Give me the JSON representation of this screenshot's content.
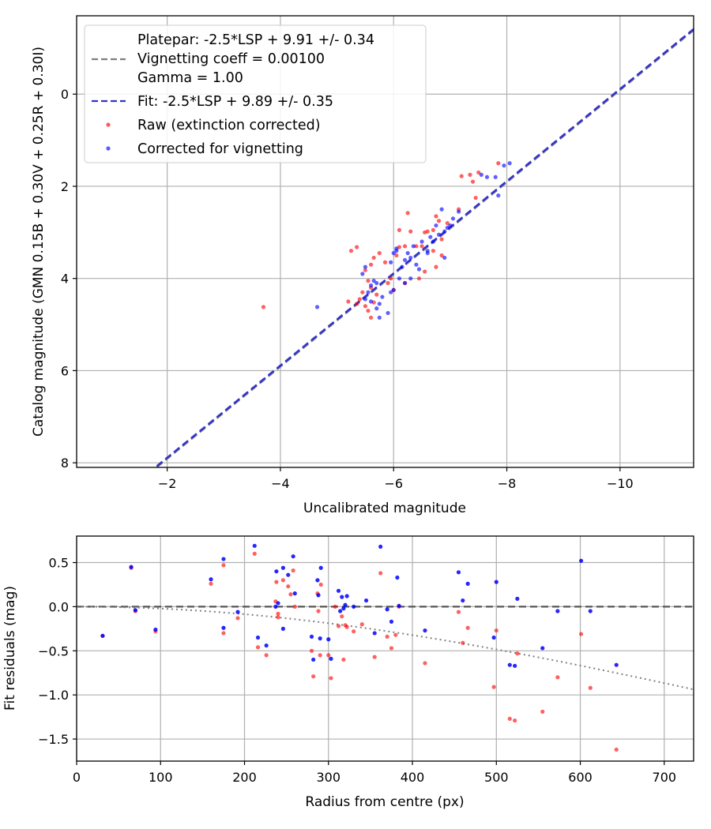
{
  "chart_data": [
    {
      "type": "scatter",
      "title": "",
      "xlabel": "Uncalibrated magnitude",
      "ylabel": "Catalog magnitude (GMN 0.15B + 0.30V + 0.25R + 0.30I)",
      "xlim": [
        -0.4,
        -11.3
      ],
      "ylim": [
        8.1,
        -1.7
      ],
      "x_inverted": true,
      "y_inverted": true,
      "grid": true,
      "x_ticks": [
        -2,
        -4,
        -6,
        -8,
        -10
      ],
      "x_tick_labels": [
        "−2",
        "−4",
        "−6",
        "−8",
        "−10"
      ],
      "y_ticks": [
        0,
        2,
        4,
        6,
        8
      ],
      "y_tick_labels": [
        "0",
        "2",
        "4",
        "6",
        "8"
      ],
      "legend_position": "upper-left",
      "legend": {
        "entries": [
          {
            "label": "Platepar: -2.5*LSP + 9.91 +/- 0.34",
            "kind": "dashed-line",
            "color": "#7f7f7f"
          },
          {
            "label": "Vignetting coeff = 0.00100",
            "kind": "text",
            "color": ""
          },
          {
            "label": "Gamma = 1.00",
            "kind": "text",
            "color": ""
          },
          {
            "label": "Fit: -2.5*LSP + 9.89 +/- 0.35",
            "kind": "dashed-line",
            "color": "#3333cc"
          },
          {
            "label": "Raw (extinction corrected)",
            "kind": "marker",
            "color": "#ff0000"
          },
          {
            "label": "Corrected for vignetting",
            "kind": "marker",
            "color": "#0000ff"
          }
        ]
      },
      "lines": [
        {
          "name": "Platepar",
          "color": "#7f7f7f",
          "dashed": true,
          "slope": 1,
          "intercept": 9.91
        },
        {
          "name": "Fit",
          "color": "#3333cc",
          "dashed": true,
          "slope": 1,
          "intercept": 9.89
        }
      ],
      "series": [
        {
          "name": "Raw (extinction corrected)",
          "color": "#ff0000",
          "points": [
            [
              -3.7,
              4.62
            ],
            [
              -5.25,
              3.4
            ],
            [
              -5.35,
              3.32
            ],
            [
              -5.5,
              3.82
            ],
            [
              -5.55,
              4.05
            ],
            [
              -5.6,
              3.7
            ],
            [
              -5.65,
              3.55
            ],
            [
              -5.6,
              4.2
            ],
            [
              -5.7,
              4.35
            ],
            [
              -5.75,
              3.45
            ],
            [
              -5.45,
              4.3
            ],
            [
              -5.4,
              4.45
            ],
            [
              -5.35,
              4.55
            ],
            [
              -5.5,
              4.6
            ],
            [
              -5.55,
              4.7
            ],
            [
              -5.65,
              4.52
            ],
            [
              -5.2,
              4.5
            ],
            [
              -5.6,
              4.85
            ],
            [
              -5.9,
              4.1
            ],
            [
              -6.0,
              4.25
            ],
            [
              -6.05,
              3.5
            ],
            [
              -6.1,
              3.32
            ],
            [
              -6.2,
              3.3
            ],
            [
              -6.25,
              2.58
            ],
            [
              -6.1,
              2.95
            ],
            [
              -6.3,
              2.98
            ],
            [
              -6.4,
              3.3
            ],
            [
              -6.5,
              3.3
            ],
            [
              -6.55,
              3.0
            ],
            [
              -6.6,
              2.98
            ],
            [
              -6.7,
              2.95
            ],
            [
              -6.75,
              2.65
            ],
            [
              -6.85,
              3.15
            ],
            [
              -6.8,
              2.75
            ],
            [
              -6.95,
              2.8
            ],
            [
              -6.2,
              4.1
            ],
            [
              -6.45,
              4.0
            ],
            [
              -6.55,
              3.85
            ],
            [
              -6.75,
              3.75
            ],
            [
              -6.7,
              3.4
            ],
            [
              -7.15,
              2.5
            ],
            [
              -7.2,
              1.78
            ],
            [
              -7.35,
              1.75
            ],
            [
              -7.45,
              2.25
            ],
            [
              -7.5,
              1.7
            ],
            [
              -7.4,
              1.9
            ],
            [
              -7.85,
              1.5
            ],
            [
              -6.85,
              3.5
            ],
            [
              -5.85,
              3.65
            ],
            [
              -5.95,
              4.0
            ]
          ]
        },
        {
          "name": "Corrected for vignetting",
          "color": "#0000ff",
          "points": [
            [
              -4.65,
              4.62
            ],
            [
              -5.5,
              4.45
            ],
            [
              -5.55,
              4.3
            ],
            [
              -5.6,
              4.15
            ],
            [
              -5.65,
              4.05
            ],
            [
              -5.6,
              4.5
            ],
            [
              -5.7,
              4.65
            ],
            [
              -5.75,
              4.85
            ],
            [
              -5.8,
              4.4
            ],
            [
              -5.9,
              4.75
            ],
            [
              -5.95,
              4.3
            ],
            [
              -5.95,
              3.65
            ],
            [
              -6.0,
              3.45
            ],
            [
              -6.05,
              3.4
            ],
            [
              -6.1,
              4.0
            ],
            [
              -6.15,
              3.75
            ],
            [
              -6.2,
              3.6
            ],
            [
              -6.25,
              3.45
            ],
            [
              -6.3,
              4.0
            ],
            [
              -6.35,
              3.3
            ],
            [
              -6.4,
              3.7
            ],
            [
              -6.45,
              3.8
            ],
            [
              -6.5,
              3.2
            ],
            [
              -6.6,
              3.4
            ],
            [
              -6.65,
              3.1
            ],
            [
              -6.7,
              3.2
            ],
            [
              -6.75,
              2.85
            ],
            [
              -6.8,
              3.05
            ],
            [
              -6.9,
              2.98
            ],
            [
              -6.95,
              2.9
            ],
            [
              -7.0,
              2.85
            ],
            [
              -7.05,
              2.7
            ],
            [
              -7.15,
              2.55
            ],
            [
              -6.85,
              2.5
            ],
            [
              -6.9,
              3.55
            ],
            [
              -6.6,
              3.45
            ],
            [
              -6.3,
              3.55
            ],
            [
              -5.5,
              3.75
            ],
            [
              -5.7,
              4.1
            ],
            [
              -7.55,
              1.75
            ],
            [
              -7.65,
              1.8
            ],
            [
              -7.8,
              1.8
            ],
            [
              -7.95,
              1.55
            ],
            [
              -8.05,
              1.5
            ],
            [
              -7.85,
              2.2
            ],
            [
              -5.45,
              3.9
            ],
            [
              -6.05,
              3.35
            ],
            [
              -6.2,
              4.1
            ],
            [
              -5.75,
              4.55
            ],
            [
              -6.0,
              4.25
            ]
          ]
        }
      ]
    },
    {
      "type": "scatter",
      "title": "",
      "xlabel": "Radius from centre (px)",
      "ylabel": "Fit residuals (mag)",
      "xlim": [
        0,
        735
      ],
      "ylim": [
        -1.75,
        0.8
      ],
      "grid": true,
      "x_ticks": [
        0,
        100,
        200,
        300,
        400,
        500,
        600,
        700
      ],
      "x_tick_labels": [
        "0",
        "100",
        "200",
        "300",
        "400",
        "500",
        "600",
        "700"
      ],
      "y_ticks": [
        0.5,
        0.0,
        -0.5,
        -1.0,
        -1.5
      ],
      "y_tick_labels": [
        "0.5",
        "0.0",
        "−0.5",
        "−1.0",
        "−1.5"
      ],
      "zero_line": {
        "y": 0,
        "color": "#555555",
        "dashed": true
      },
      "vignetting_curve": {
        "color": "#808080",
        "dotted": true,
        "coeff": 0.001
      },
      "series": [
        {
          "name": "Raw (extinction corrected)",
          "color": "#ff0000",
          "points": [
            [
              31,
              -0.33
            ],
            [
              65,
              0.44
            ],
            [
              70,
              -0.05
            ],
            [
              94,
              -0.28
            ],
            [
              160,
              0.26
            ],
            [
              175,
              0.47
            ],
            [
              175,
              -0.3
            ],
            [
              192,
              -0.13
            ],
            [
              212,
              0.6
            ],
            [
              216,
              -0.46
            ],
            [
              226,
              -0.55
            ],
            [
              237,
              0.06
            ],
            [
              238,
              0.28
            ],
            [
              240,
              -0.08
            ],
            [
              240,
              -0.12
            ],
            [
              246,
              0.3
            ],
            [
              252,
              0.23
            ],
            [
              255,
              0.14
            ],
            [
              258,
              0.41
            ],
            [
              260,
              0.0
            ],
            [
              280,
              -0.5
            ],
            [
              282,
              -0.79
            ],
            [
              287,
              0.15
            ],
            [
              288,
              -0.05
            ],
            [
              290,
              -0.55
            ],
            [
              291,
              0.25
            ],
            [
              300,
              -0.55
            ],
            [
              303,
              -0.81
            ],
            [
              308,
              0.0
            ],
            [
              312,
              -0.22
            ],
            [
              316,
              -0.11
            ],
            [
              318,
              -0.6
            ],
            [
              320,
              -0.21
            ],
            [
              322,
              -0.23
            ],
            [
              330,
              -0.28
            ],
            [
              340,
              -0.2
            ],
            [
              355,
              -0.57
            ],
            [
              362,
              0.38
            ],
            [
              370,
              -0.34
            ],
            [
              375,
              -0.47
            ],
            [
              380,
              -0.32
            ],
            [
              384,
              0.0
            ],
            [
              415,
              -0.64
            ],
            [
              455,
              -0.06
            ],
            [
              460,
              -0.41
            ],
            [
              466,
              -0.24
            ],
            [
              497,
              -0.91
            ],
            [
              500,
              -0.27
            ],
            [
              516,
              -1.27
            ],
            [
              522,
              -1.29
            ],
            [
              525,
              -0.53
            ],
            [
              555,
              -1.19
            ],
            [
              573,
              -0.8
            ],
            [
              601,
              -0.31
            ],
            [
              612,
              -0.92
            ],
            [
              643,
              -1.62
            ]
          ]
        },
        {
          "name": "Corrected for vignetting",
          "color": "#0000ff",
          "points": [
            [
              31,
              -0.33
            ],
            [
              65,
              0.45
            ],
            [
              70,
              -0.04
            ],
            [
              94,
              -0.26
            ],
            [
              160,
              0.31
            ],
            [
              175,
              0.54
            ],
            [
              175,
              -0.24
            ],
            [
              192,
              -0.06
            ],
            [
              212,
              0.69
            ],
            [
              216,
              -0.35
            ],
            [
              226,
              -0.44
            ],
            [
              237,
              0.0
            ],
            [
              238,
              0.4
            ],
            [
              240,
              0.04
            ],
            [
              246,
              0.44
            ],
            [
              246,
              -0.25
            ],
            [
              252,
              0.36
            ],
            [
              258,
              0.57
            ],
            [
              260,
              0.15
            ],
            [
              280,
              -0.34
            ],
            [
              282,
              -0.6
            ],
            [
              287,
              0.3
            ],
            [
              288,
              0.13
            ],
            [
              290,
              -0.36
            ],
            [
              291,
              0.44
            ],
            [
              300,
              -0.37
            ],
            [
              303,
              -0.59
            ],
            [
              312,
              0.18
            ],
            [
              314,
              -0.05
            ],
            [
              316,
              0.11
            ],
            [
              318,
              -0.02
            ],
            [
              320,
              0.02
            ],
            [
              322,
              0.12
            ],
            [
              330,
              0.0
            ],
            [
              345,
              0.07
            ],
            [
              355,
              -0.3
            ],
            [
              362,
              0.68
            ],
            [
              370,
              -0.03
            ],
            [
              375,
              -0.17
            ],
            [
              382,
              0.33
            ],
            [
              384,
              0.01
            ],
            [
              415,
              -0.27
            ],
            [
              455,
              0.39
            ],
            [
              460,
              0.07
            ],
            [
              466,
              0.26
            ],
            [
              497,
              -0.35
            ],
            [
              500,
              0.28
            ],
            [
              516,
              -0.66
            ],
            [
              522,
              -0.67
            ],
            [
              525,
              0.09
            ],
            [
              555,
              -0.47
            ],
            [
              573,
              -0.05
            ],
            [
              601,
              0.52
            ],
            [
              612,
              -0.05
            ],
            [
              643,
              -0.66
            ]
          ]
        }
      ]
    }
  ]
}
